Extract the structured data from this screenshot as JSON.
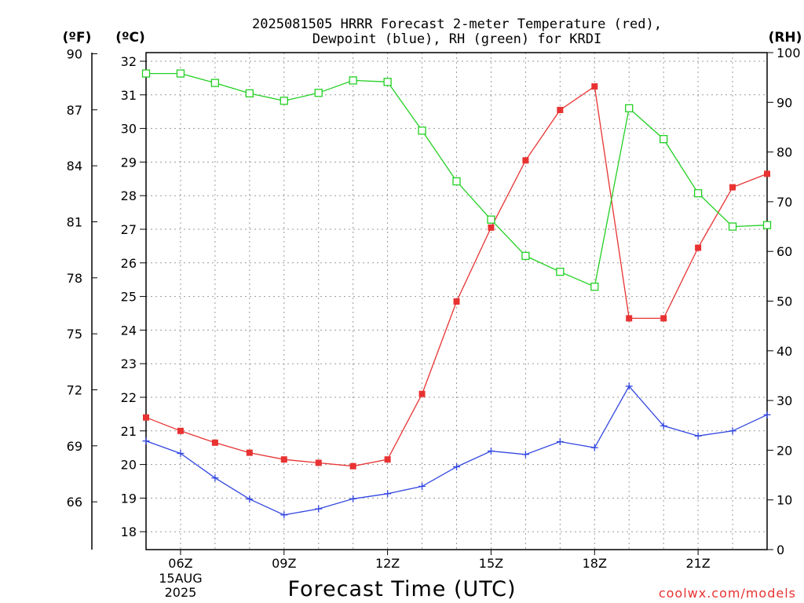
{
  "chart_data": {
    "type": "line",
    "title_line1": "2025081505 HRRR Forecast 2-meter Temperature (red),",
    "title_line2": "Dewpoint (blue), RH (green) for KRDI",
    "xlabel": "Forecast Time (UTC)",
    "credit": "coolwx.com/models",
    "unit_f": "(ºF)",
    "unit_c": "(ºC)",
    "unit_rh": "(RH)",
    "x_hours": [
      5,
      6,
      7,
      8,
      9,
      10,
      11,
      12,
      13,
      14,
      15,
      16,
      17,
      18,
      19,
      20,
      21,
      22,
      23
    ],
    "xlim": [
      5,
      23
    ],
    "x_ticks": [
      {
        "hour": 6,
        "label": "06Z",
        "sub1": "15AUG",
        "sub2": "2025"
      },
      {
        "hour": 9,
        "label": "09Z"
      },
      {
        "hour": 12,
        "label": "12Z"
      },
      {
        "hour": 15,
        "label": "15Z"
      },
      {
        "hour": 18,
        "label": "18Z"
      },
      {
        "hour": 21,
        "label": "21Z"
      }
    ],
    "c_axis": {
      "lim": [
        17.5,
        32.4
      ],
      "ticks": [
        18,
        19,
        20,
        21,
        22,
        23,
        24,
        25,
        26,
        27,
        28,
        29,
        30,
        31,
        32
      ]
    },
    "f_axis": {
      "ticks": [
        66,
        69,
        72,
        75,
        78,
        81,
        84,
        87,
        90
      ]
    },
    "rh_axis": {
      "lim": [
        0,
        100
      ],
      "ticks": [
        0,
        10,
        20,
        30,
        40,
        50,
        60,
        70,
        80,
        90,
        100
      ]
    },
    "series": [
      {
        "name": "Temperature",
        "axis": "c",
        "color": "#e83232",
        "marker": "filled-square",
        "values": [
          21.4,
          21.0,
          20.65,
          20.35,
          20.15,
          20.05,
          19.95,
          20.15,
          22.1,
          24.85,
          27.05,
          29.05,
          30.55,
          31.25,
          24.35,
          24.35,
          26.45,
          28.25,
          28.65
        ]
      },
      {
        "name": "Dewpoint",
        "axis": "c",
        "color": "#3246e0",
        "marker": "plus",
        "values": [
          20.7,
          20.33,
          19.6,
          18.97,
          18.5,
          18.68,
          18.98,
          19.13,
          19.35,
          19.93,
          20.4,
          20.3,
          20.68,
          20.5,
          22.33,
          21.15,
          20.85,
          21.0,
          21.48
        ]
      },
      {
        "name": "RH",
        "axis": "rh",
        "color": "#22d022",
        "marker": "open-square",
        "values": [
          95.8,
          95.8,
          93.9,
          91.8,
          90.3,
          91.9,
          94.4,
          94.1,
          84.3,
          74.1,
          66.4,
          59.1,
          55.9,
          52.9,
          88.8,
          82.6,
          71.7,
          65.0,
          65.3
        ]
      }
    ],
    "grid": true
  }
}
